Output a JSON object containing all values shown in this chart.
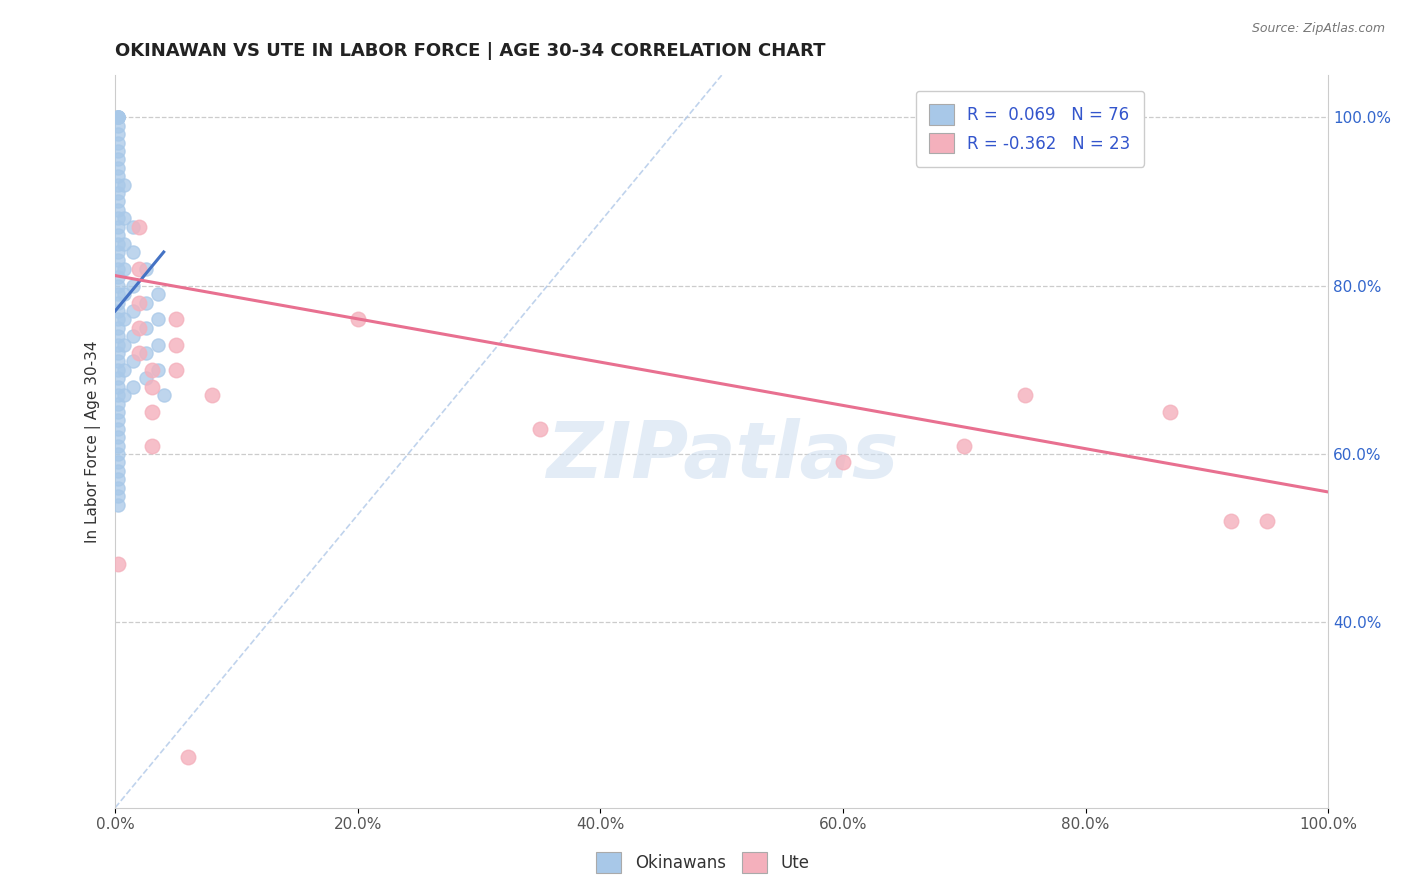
{
  "title": "OKINAWAN VS UTE IN LABOR FORCE | AGE 30-34 CORRELATION CHART",
  "source": "Source: ZipAtlas.com",
  "ylabel": "In Labor Force | Age 30-34",
  "xmin": 0.0,
  "xmax": 1.0,
  "ymin": 0.18,
  "ymax": 1.05,
  "xticks": [
    0.0,
    0.2,
    0.4,
    0.6,
    0.8,
    1.0
  ],
  "xtick_labels": [
    "0.0%",
    "20.0%",
    "40.0%",
    "60.0%",
    "80.0%",
    "100.0%"
  ],
  "ytick_positions_right": [
    0.4,
    0.6,
    0.8,
    1.0
  ],
  "ytick_labels_right": [
    "40.0%",
    "60.0%",
    "80.0%",
    "100.0%"
  ],
  "legend_r_okinawan": "0.069",
  "legend_n_okinawan": "76",
  "legend_r_ute": "-0.362",
  "legend_n_ute": "23",
  "okinawan_color": "#a8c8e8",
  "ute_color": "#f4b0bc",
  "trend_blue": "#4472c4",
  "trend_pink": "#e87090",
  "diag_color": "#b0c8e8",
  "background_color": "#ffffff",
  "grid_color": "#cccccc",
  "watermark_color": "#ccddf0",
  "ok_x": [
    0.002,
    0.002,
    0.002,
    0.002,
    0.002,
    0.002,
    0.002,
    0.002,
    0.002,
    0.002,
    0.002,
    0.002,
    0.002,
    0.002,
    0.002,
    0.002,
    0.002,
    0.002,
    0.002,
    0.002,
    0.002,
    0.002,
    0.002,
    0.002,
    0.002,
    0.002,
    0.002,
    0.002,
    0.002,
    0.002,
    0.002,
    0.002,
    0.002,
    0.002,
    0.002,
    0.002,
    0.002,
    0.002,
    0.002,
    0.002,
    0.002,
    0.002,
    0.002,
    0.002,
    0.002,
    0.002,
    0.002,
    0.002,
    0.002,
    0.002,
    0.007,
    0.007,
    0.007,
    0.007,
    0.007,
    0.007,
    0.007,
    0.007,
    0.007,
    0.015,
    0.015,
    0.015,
    0.015,
    0.015,
    0.015,
    0.015,
    0.025,
    0.025,
    0.025,
    0.025,
    0.025,
    0.035,
    0.035,
    0.035,
    0.035,
    0.04
  ],
  "ok_y": [
    1.0,
    1.0,
    1.0,
    1.0,
    0.99,
    0.98,
    0.97,
    0.96,
    0.95,
    0.94,
    0.93,
    0.92,
    0.91,
    0.9,
    0.89,
    0.88,
    0.87,
    0.86,
    0.85,
    0.84,
    0.83,
    0.82,
    0.81,
    0.8,
    0.79,
    0.78,
    0.77,
    0.76,
    0.75,
    0.74,
    0.73,
    0.72,
    0.71,
    0.7,
    0.69,
    0.68,
    0.67,
    0.66,
    0.65,
    0.64,
    0.63,
    0.62,
    0.61,
    0.6,
    0.59,
    0.58,
    0.57,
    0.56,
    0.55,
    0.54,
    0.92,
    0.88,
    0.85,
    0.82,
    0.79,
    0.76,
    0.73,
    0.7,
    0.67,
    0.87,
    0.84,
    0.8,
    0.77,
    0.74,
    0.71,
    0.68,
    0.82,
    0.78,
    0.75,
    0.72,
    0.69,
    0.79,
    0.76,
    0.73,
    0.7,
    0.67
  ],
  "ute_x": [
    0.002,
    0.02,
    0.02,
    0.02,
    0.02,
    0.02,
    0.03,
    0.03,
    0.03,
    0.03,
    0.05,
    0.05,
    0.05,
    0.08,
    0.2,
    0.35,
    0.6,
    0.7,
    0.75,
    0.87,
    0.92,
    0.95,
    0.06
  ],
  "ute_y": [
    0.47,
    0.87,
    0.82,
    0.78,
    0.75,
    0.72,
    0.7,
    0.68,
    0.65,
    0.61,
    0.76,
    0.73,
    0.7,
    0.67,
    0.76,
    0.63,
    0.59,
    0.61,
    0.67,
    0.65,
    0.52,
    0.52,
    0.24
  ],
  "blue_trend_x0": 0.0,
  "blue_trend_x1": 0.04,
  "blue_trend_y0": 0.77,
  "blue_trend_y1": 0.84,
  "pink_trend_x0": 0.0,
  "pink_trend_x1": 1.0,
  "pink_trend_y0": 0.812,
  "pink_trend_y1": 0.555
}
